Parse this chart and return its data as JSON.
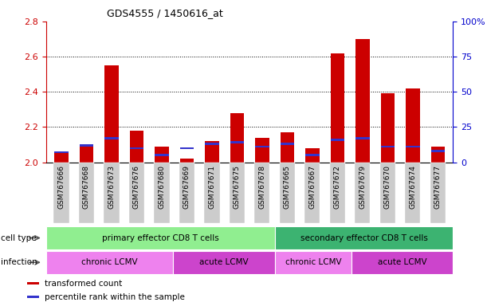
{
  "title": "GDS4555 / 1450616_at",
  "samples": [
    "GSM767666",
    "GSM767668",
    "GSM767673",
    "GSM767676",
    "GSM767680",
    "GSM767669",
    "GSM767671",
    "GSM767675",
    "GSM767678",
    "GSM767665",
    "GSM767667",
    "GSM767672",
    "GSM767679",
    "GSM767670",
    "GSM767674",
    "GSM767677"
  ],
  "transformed_count": [
    2.06,
    2.09,
    2.55,
    2.18,
    2.09,
    2.02,
    2.12,
    2.28,
    2.14,
    2.17,
    2.08,
    2.62,
    2.7,
    2.39,
    2.42,
    2.09
  ],
  "percentile_rank": [
    7,
    12,
    17,
    10,
    5,
    10,
    13,
    14,
    11,
    13,
    5,
    16,
    17,
    11,
    11,
    8
  ],
  "ylim_left": [
    2.0,
    2.8
  ],
  "ylim_right": [
    0,
    100
  ],
  "yticks_left": [
    2.0,
    2.2,
    2.4,
    2.6,
    2.8
  ],
  "yticks_right": [
    0,
    25,
    50,
    75,
    100
  ],
  "ytick_labels_right": [
    "0",
    "25",
    "50",
    "75",
    "100%"
  ],
  "bar_color_red": "#cc0000",
  "bar_color_blue": "#3333cc",
  "bar_width": 0.55,
  "cell_type_groups": [
    {
      "label": "primary effector CD8 T cells",
      "start": 0,
      "end": 8,
      "color": "#90ee90"
    },
    {
      "label": "secondary effector CD8 T cells",
      "start": 9,
      "end": 15,
      "color": "#3cb371"
    }
  ],
  "infection_groups": [
    {
      "label": "chronic LCMV",
      "start": 0,
      "end": 4,
      "color": "#ee82ee"
    },
    {
      "label": "acute LCMV",
      "start": 5,
      "end": 8,
      "color": "#cc44cc"
    },
    {
      "label": "chronic LCMV",
      "start": 9,
      "end": 11,
      "color": "#ee82ee"
    },
    {
      "label": "acute LCMV",
      "start": 12,
      "end": 15,
      "color": "#cc44cc"
    }
  ],
  "legend_items": [
    {
      "label": "transformed count",
      "color": "#cc0000"
    },
    {
      "label": "percentile rank within the sample",
      "color": "#3333cc"
    }
  ],
  "annotation_label_cell": "cell type",
  "annotation_label_infection": "infection",
  "tick_color_left": "#cc0000",
  "tick_color_right": "#0000cc",
  "xtick_bg_color": "#cccccc",
  "spine_color": "#000000"
}
